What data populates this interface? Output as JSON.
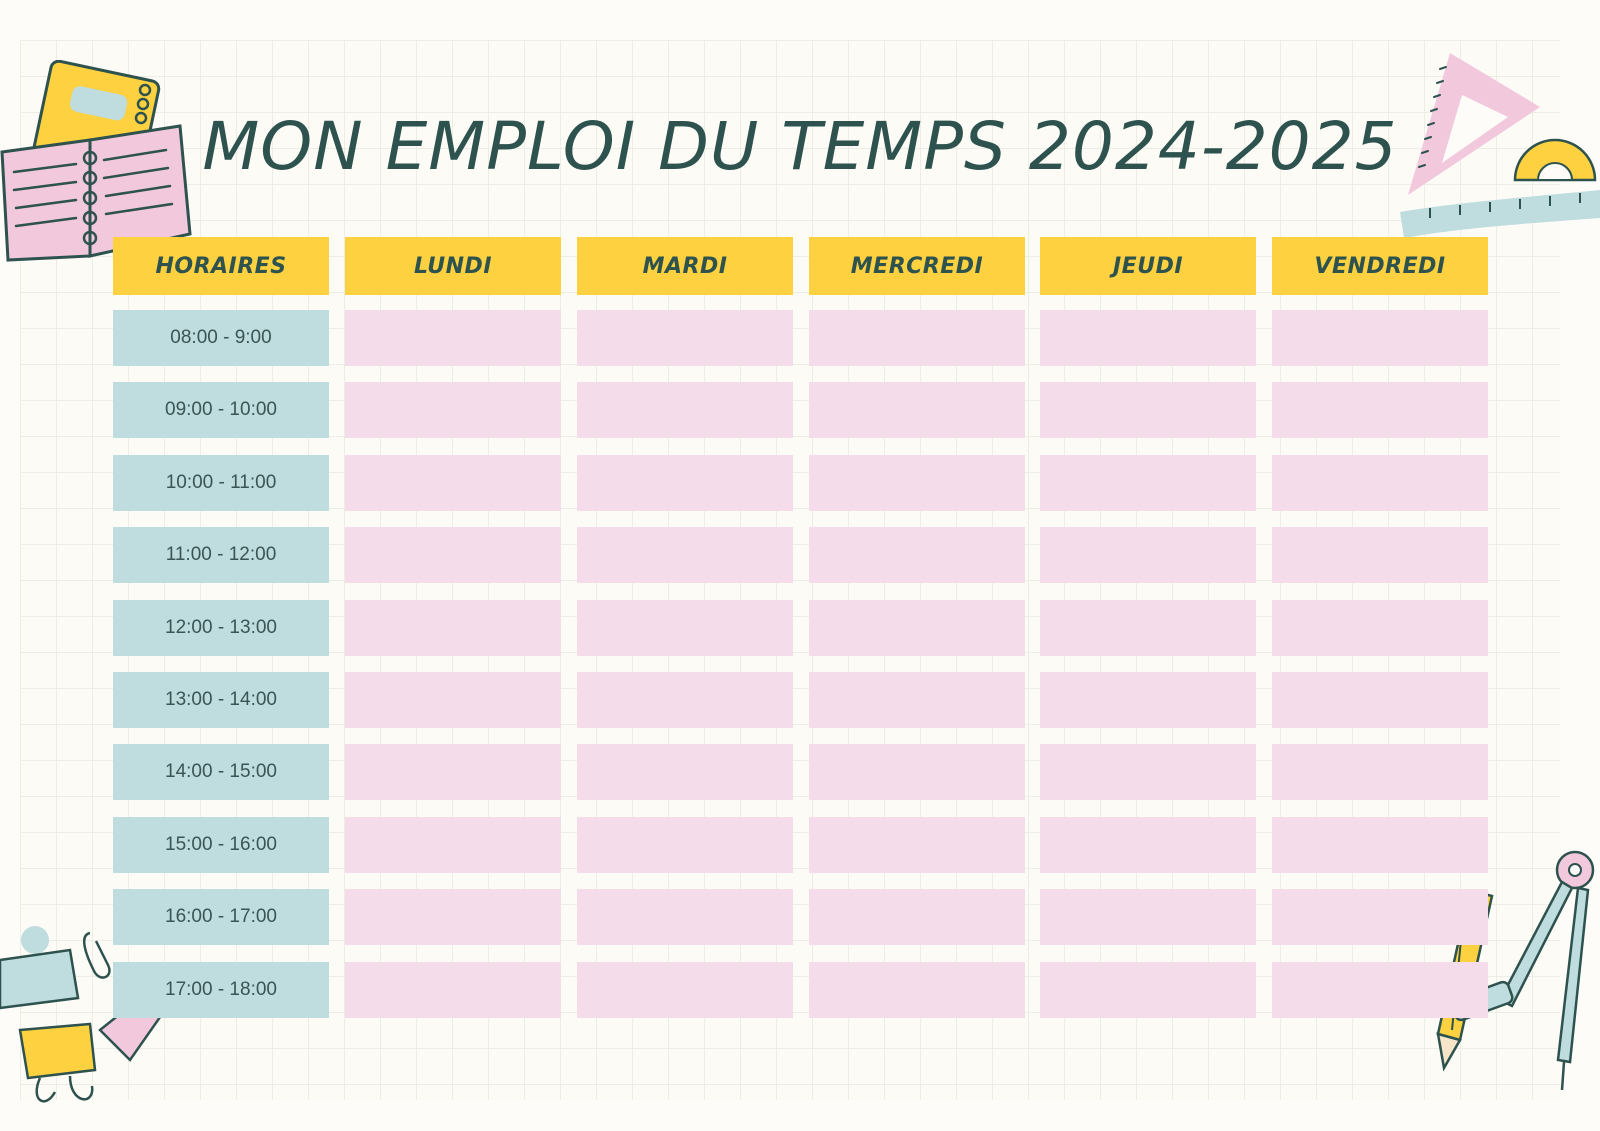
{
  "title": "MON EMPLOI DU TEMPS 2024-2025",
  "headers": [
    "HORAIRES",
    "LUNDI",
    "MARDI",
    "MERCREDI",
    "JEUDI",
    "VENDREDI"
  ],
  "times": [
    "08:00 - 9:00",
    "09:00 - 10:00",
    "10:00 - 11:00",
    "11:00 - 12:00",
    "12:00 - 13:00",
    "13:00 - 14:00",
    "14:00 - 15:00",
    "15:00 - 16:00",
    "16:00 - 17:00",
    "17:00 - 18:00"
  ],
  "colors": {
    "header": "#fdd13f",
    "time": "#bfdcdf",
    "slot": "#f4dcea",
    "text": "#2e524e"
  },
  "decorations": [
    "notebook-icon",
    "set-square-icon",
    "protractor-icon",
    "measuring-tape-icon",
    "binder-clip-icon",
    "paperclip-icon",
    "pencil-icon",
    "compass-icon"
  ]
}
